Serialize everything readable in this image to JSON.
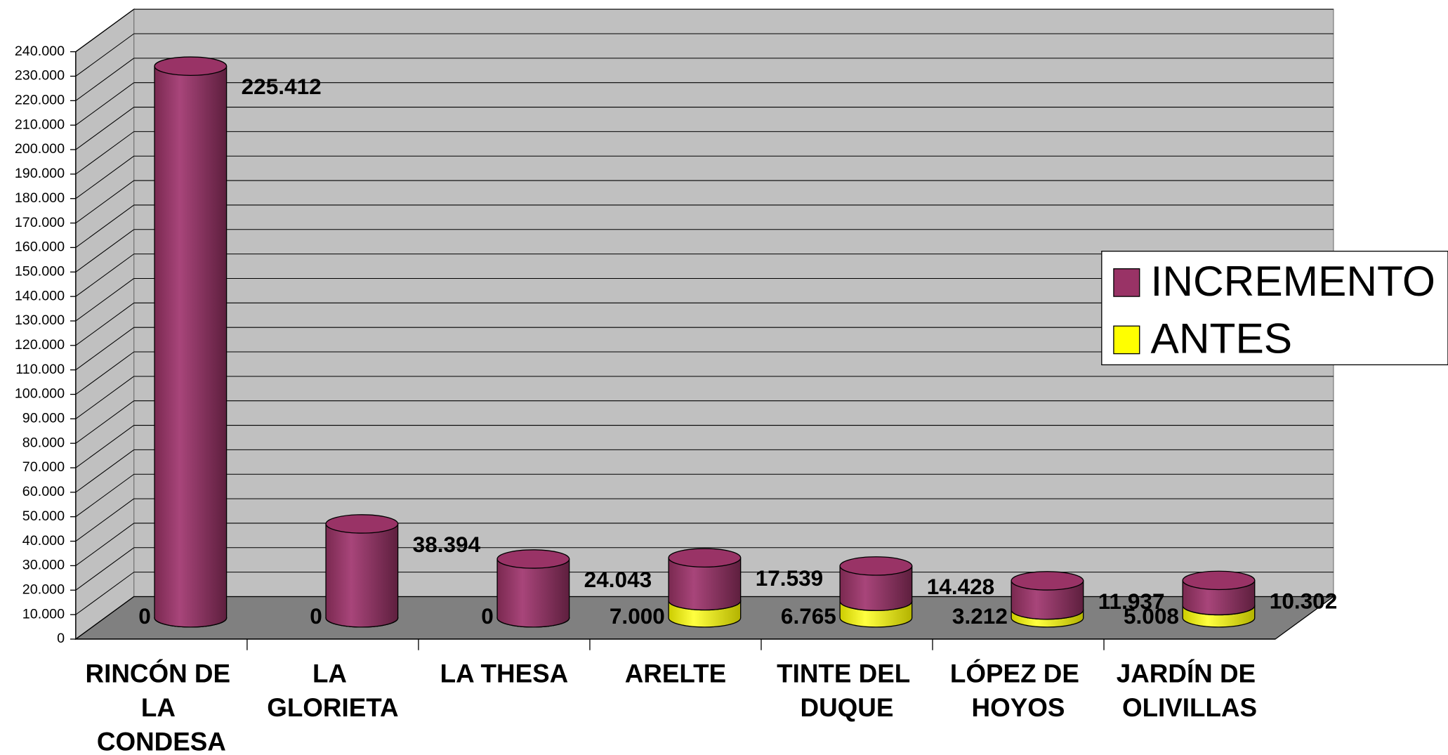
{
  "chart_data": {
    "type": "bar3d_stacked",
    "categories": [
      "RINCÓN DE LA CONDESA",
      "LA GLORIETA",
      "LA THESA",
      "ARELTE",
      "TINTE DEL DUQUE",
      "LÓPEZ DE HOYOS",
      "JARDÍN DE OLIVILLAS"
    ],
    "series": [
      {
        "name": "ANTES",
        "color": "#ffff00",
        "values": [
          0,
          0,
          0,
          7000,
          6765,
          3212,
          5008
        ],
        "value_labels": [
          "0",
          "0",
          "0",
          "7.000",
          "6.765",
          "3.212",
          "5.008"
        ]
      },
      {
        "name": "INCREMENTO",
        "color": "#993366",
        "values": [
          225412,
          38394,
          24043,
          17539,
          14428,
          11937,
          10302
        ],
        "value_labels": [
          "225.412",
          "38.394",
          "24.043",
          "17.539",
          "14.428",
          "11.937",
          "10.302"
        ]
      }
    ],
    "legend_order": [
      "INCREMENTO",
      "ANTES"
    ],
    "ylim": [
      0,
      240000
    ],
    "yticks": [
      0,
      {
        "value": 10000,
        "label": "10.000"
      },
      {
        "value": 20000,
        "label": "20.000"
      },
      {
        "value": 30000,
        "label": "30.000"
      },
      {
        "value": 40000,
        "label": "40.000"
      },
      {
        "value": 50000,
        "label": "50.000"
      },
      {
        "value": 60000,
        "label": "60.000"
      },
      {
        "value": 70000,
        "label": "70.000"
      },
      {
        "value": 80000,
        "label": "80.000"
      },
      {
        "value": 90000,
        "label": "90.000"
      },
      {
        "value": 100000,
        "label": "100.000"
      },
      {
        "value": 110000,
        "label": "110.000"
      },
      {
        "value": 120000,
        "label": "120.000"
      },
      {
        "value": 130000,
        "label": "130.000"
      },
      {
        "value": 140000,
        "label": "140.000"
      },
      {
        "value": 150000,
        "label": "150.000"
      },
      {
        "value": 160000,
        "label": "160.000"
      },
      {
        "value": 170000,
        "label": "170.000"
      },
      {
        "value": 180000,
        "label": "180.000"
      },
      {
        "value": 190000,
        "label": "190.000"
      },
      {
        "value": 200000,
        "label": "200.000"
      },
      {
        "value": 210000,
        "label": "210.000"
      },
      {
        "value": 220000,
        "label": "220.000"
      },
      {
        "value": 230000,
        "label": "230.000"
      },
      {
        "value": 240000,
        "label": "240.000"
      }
    ],
    "grid": true
  }
}
